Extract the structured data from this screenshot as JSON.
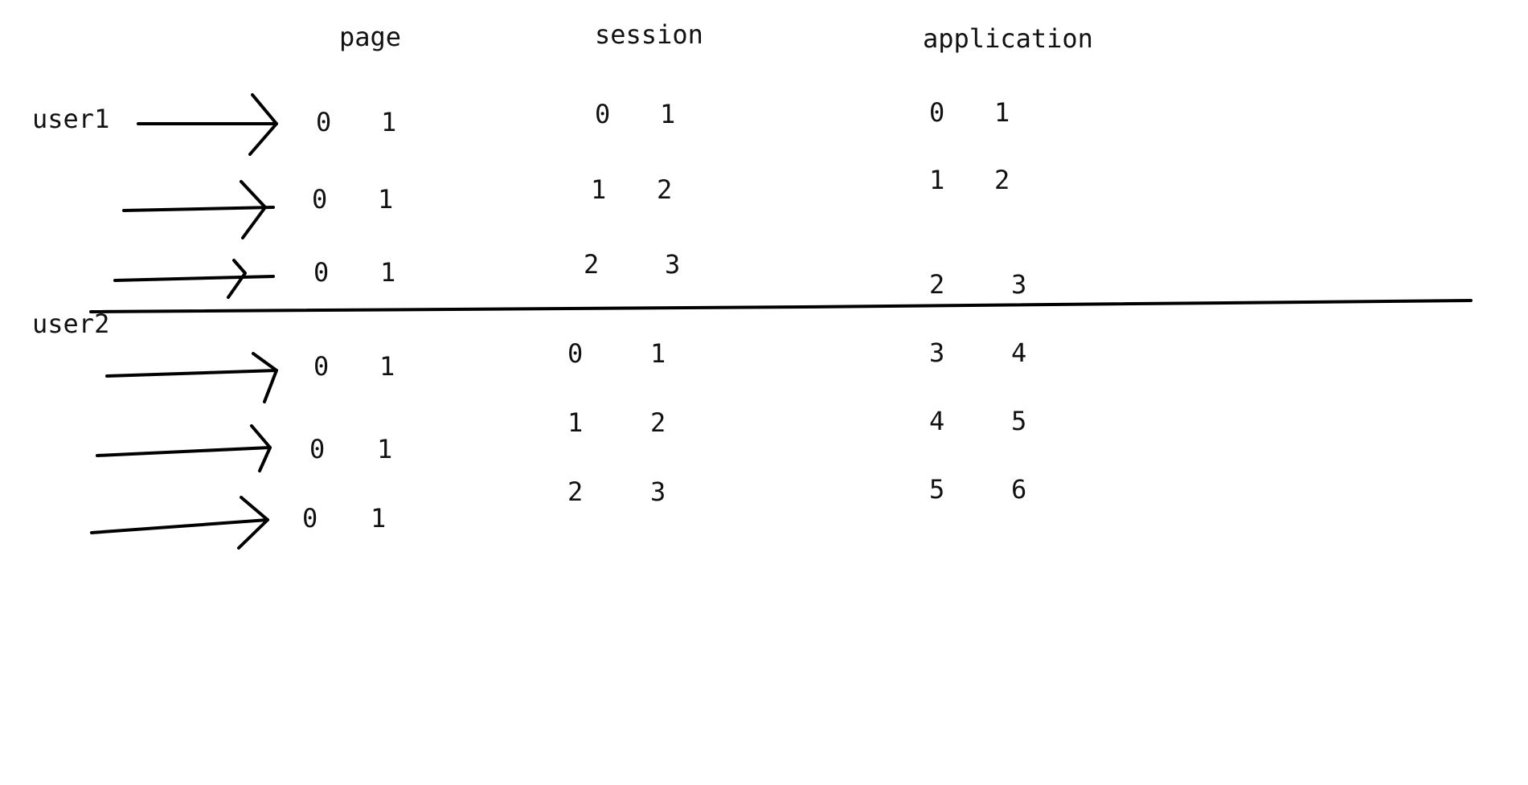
{
  "headers": {
    "page": "page",
    "session": "session",
    "application": "application"
  },
  "users": {
    "user1": "user1",
    "user2": "user2"
  },
  "requests": [
    {
      "user": "user1",
      "page": [
        "0",
        "1"
      ],
      "session": [
        "0",
        "1"
      ],
      "application": [
        "0",
        "1"
      ]
    },
    {
      "user": "user1",
      "page": [
        "0",
        "1"
      ],
      "session": [
        "1",
        "2"
      ],
      "application": [
        "1",
        "2"
      ]
    },
    {
      "user": "user1",
      "page": [
        "0",
        "1"
      ],
      "session": [
        "2",
        "3"
      ],
      "application": [
        "2",
        "3"
      ]
    },
    {
      "user": "user2",
      "page": [
        "0",
        "1"
      ],
      "session": [
        "0",
        "1"
      ],
      "application": [
        "3",
        "4"
      ]
    },
    {
      "user": "user2",
      "page": [
        "0",
        "1"
      ],
      "session": [
        "1",
        "2"
      ],
      "application": [
        "4",
        "5"
      ]
    },
    {
      "user": "user2",
      "page": [
        "0",
        "1"
      ],
      "session": [
        "2",
        "3"
      ],
      "application": [
        "5",
        "6"
      ]
    }
  ]
}
